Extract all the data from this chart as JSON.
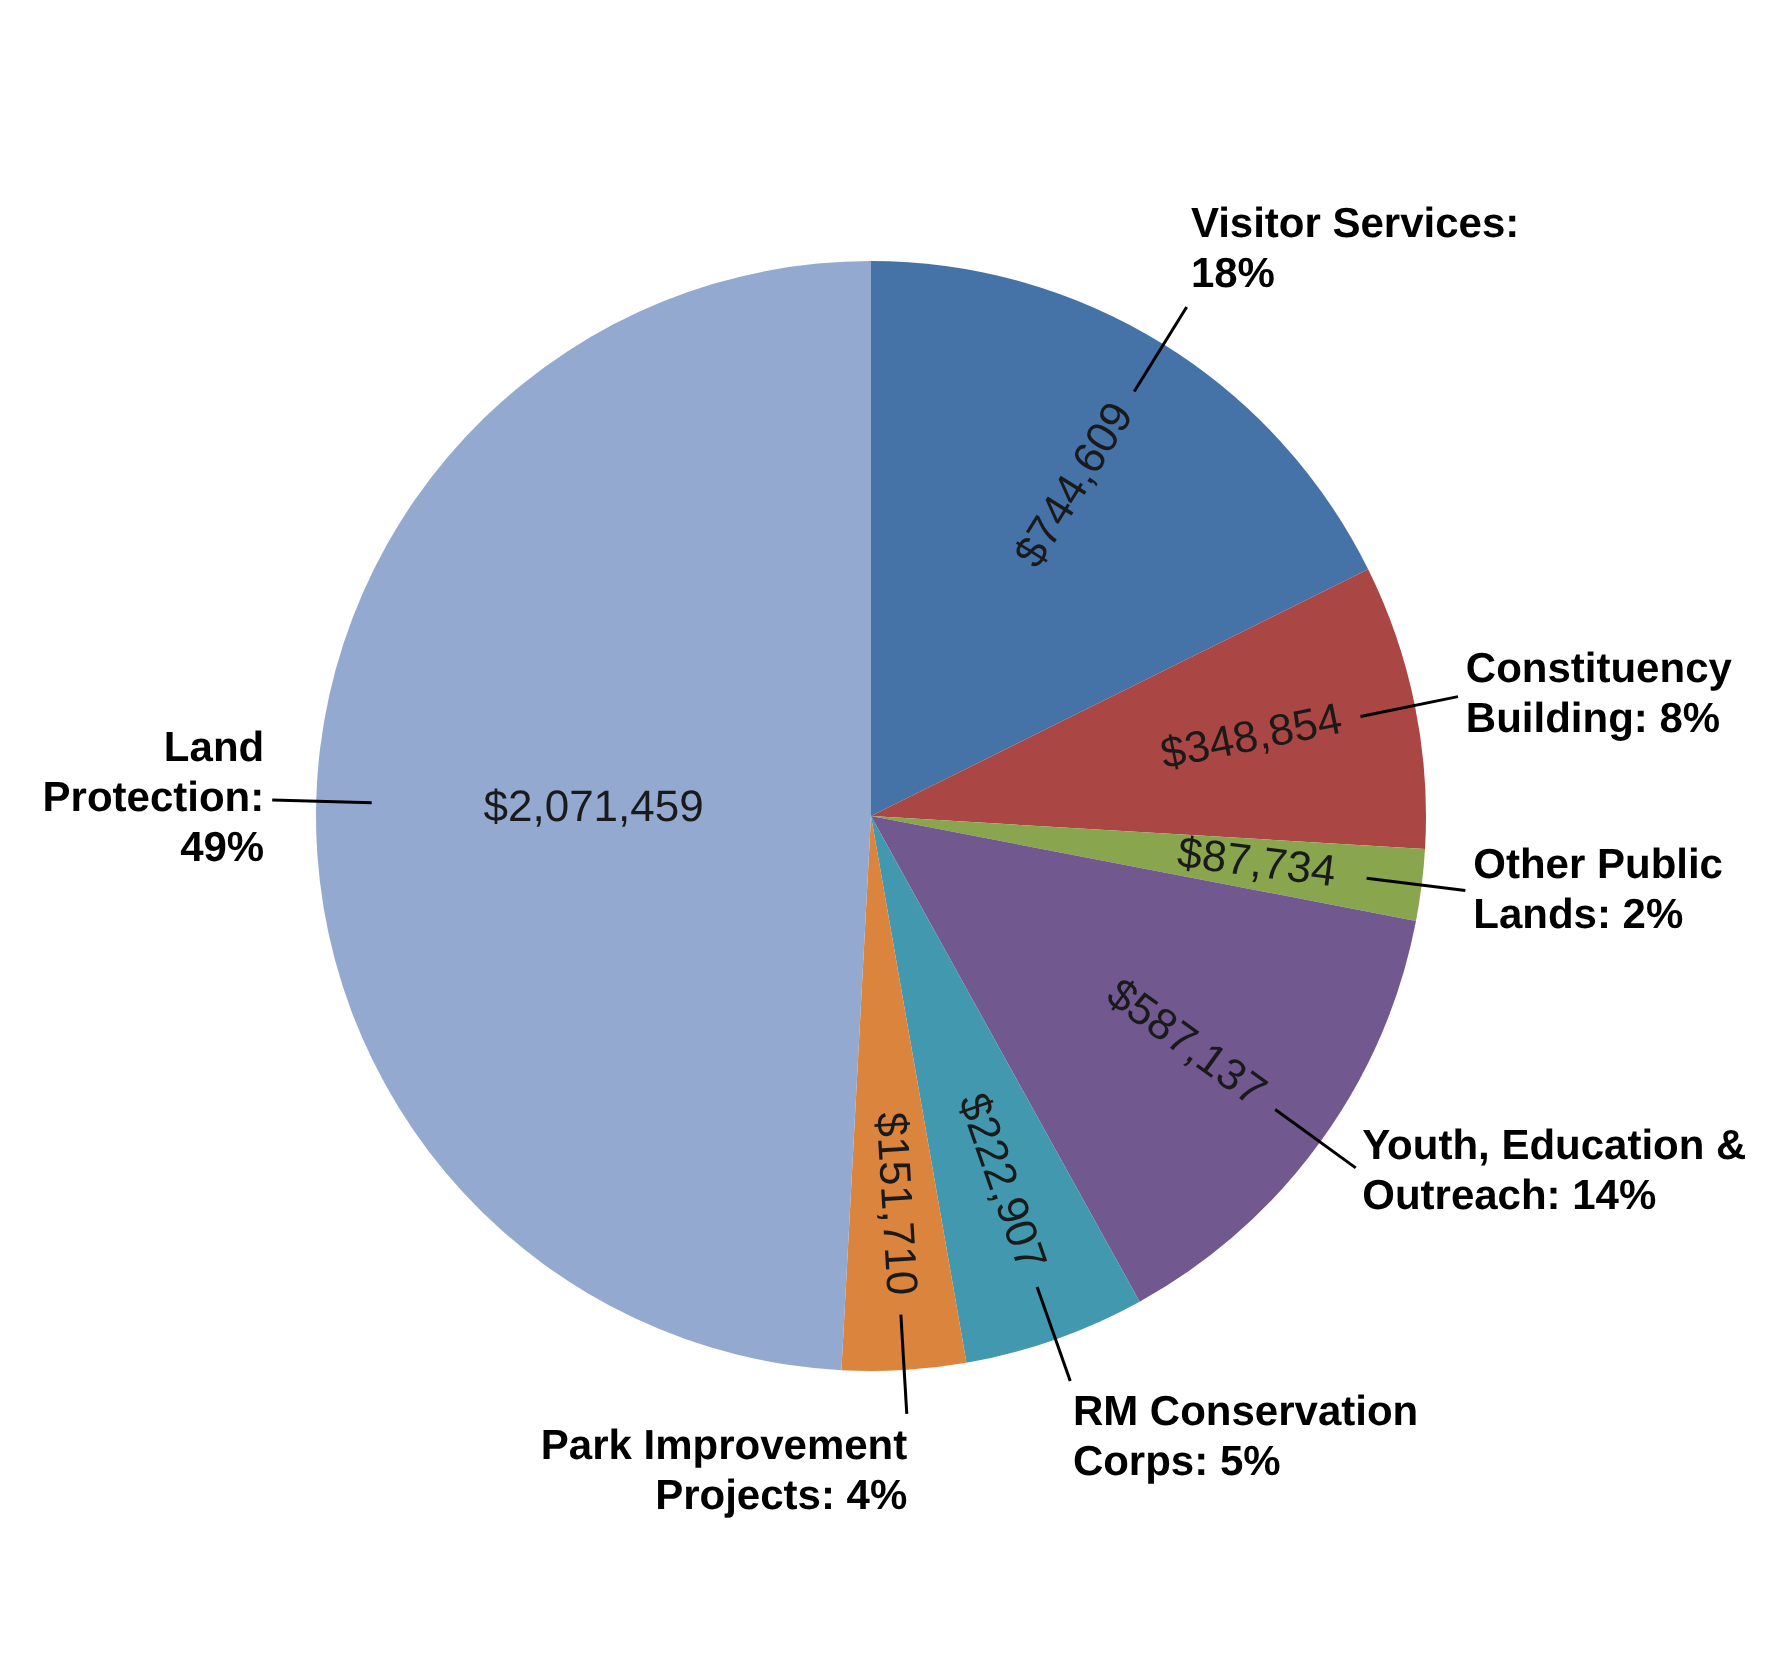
{
  "chart_data": {
    "type": "pie",
    "categories": [
      "Visitor Services: 18%",
      "Constituency Building: 8%",
      "Other Public Lands: 2%",
      "Youth, Education & Outreach: 14%",
      "RM Conservation Corps: 5%",
      "Park Improvement Projects: 4%",
      "Land Protection: 49%"
    ],
    "values": [
      744609,
      348854,
      87734,
      587137,
      222907,
      151710,
      2071459
    ],
    "value_labels": [
      "$744,609",
      "$348,854",
      "$87,734",
      "$587,137",
      "$222,907",
      "$151,710",
      "$2,071,459"
    ],
    "colors": [
      "#4572a7",
      "#aa4643",
      "#89a54e",
      "#71588f",
      "#4198af",
      "#db843d",
      "#93a9cf"
    ],
    "legend": false
  }
}
